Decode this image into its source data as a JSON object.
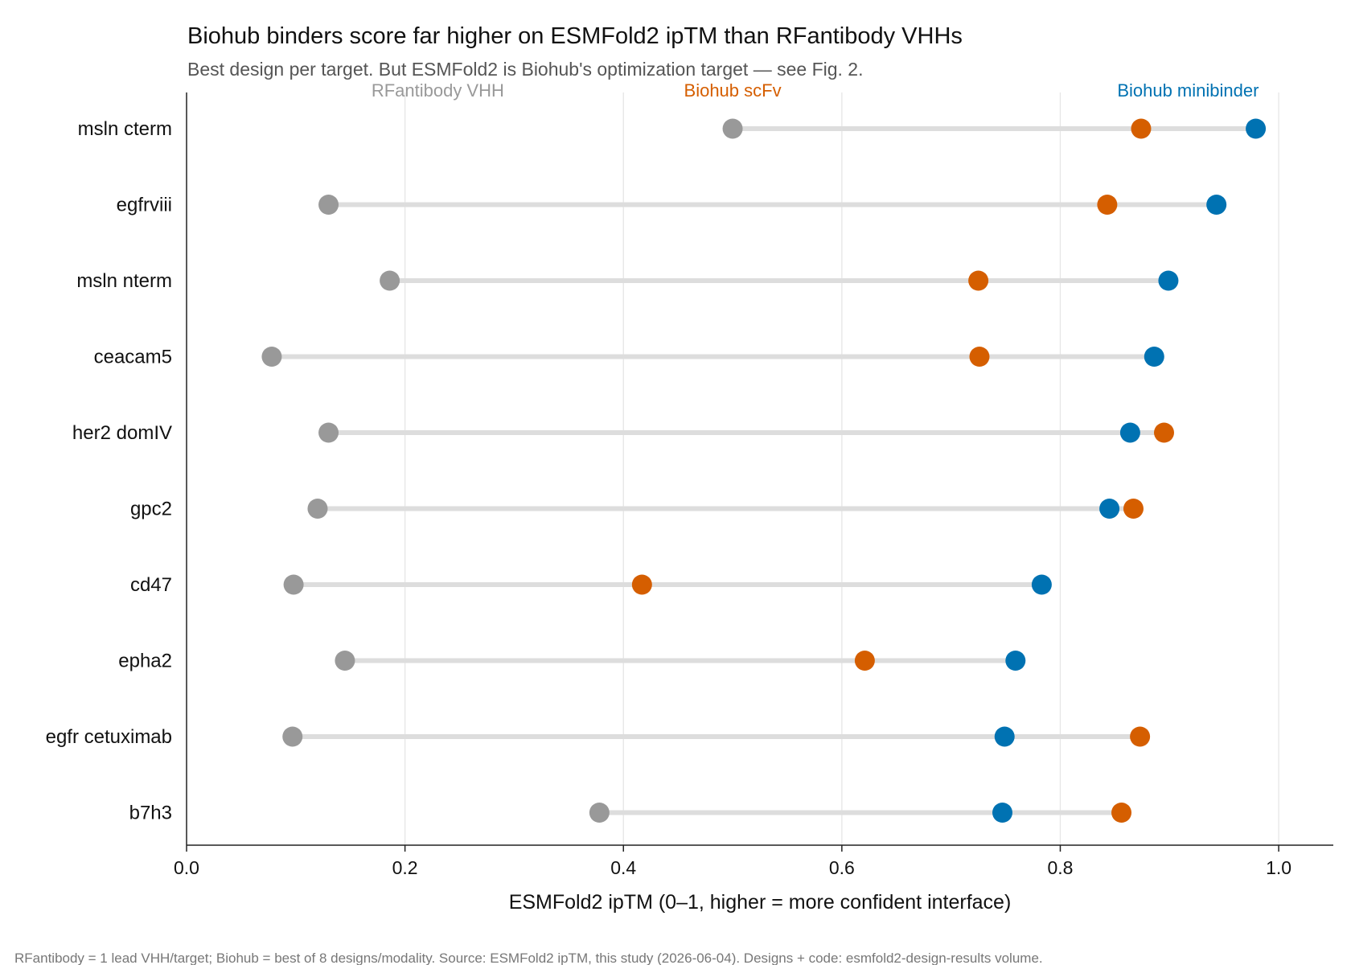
{
  "chart_data": {
    "type": "dumbbell",
    "title": "Biohub binders score far higher on ESMFold2 ipTM than RFantibody VHHs",
    "subtitle": "Best design per target. But ESMFold2 is Biohub's optimization target — see Fig. 2.",
    "xlabel": "ESMFold2 ipTM  (0–1, higher = more confident interface)",
    "ylabel": "",
    "xlim": [
      0.0,
      1.05
    ],
    "xticks": [
      0.0,
      0.2,
      0.4,
      0.6,
      0.8,
      1.0
    ],
    "xtick_labels": [
      "0.0",
      "0.2",
      "0.4",
      "0.6",
      "0.8",
      "1.0"
    ],
    "grid": "vertical",
    "categories": [
      "msln cterm",
      "egfrviii",
      "msln nterm",
      "ceacam5",
      "her2 domIV",
      "gpc2",
      "cd47",
      "epha2",
      "egfr cetuximab",
      "b7h3"
    ],
    "series": [
      {
        "name": "RFantibody VHH",
        "color": "#999999",
        "values": [
          0.5,
          0.13,
          0.186,
          0.078,
          0.13,
          0.12,
          0.098,
          0.145,
          0.097,
          0.378
        ]
      },
      {
        "name": "Biohub scFv",
        "color": "#D55E00",
        "values": [
          0.874,
          0.843,
          0.725,
          0.726,
          0.895,
          0.867,
          0.417,
          0.621,
          0.873,
          0.856
        ]
      },
      {
        "name": "Biohub minibinder",
        "color": "#0072B2",
        "values": [
          0.979,
          0.943,
          0.899,
          0.886,
          0.864,
          0.845,
          0.783,
          0.759,
          0.749,
          0.747
        ]
      }
    ],
    "footnote": "RFantibody = 1 lead VHH/target; Biohub = best of 8 designs/modality.  Source: ESMFold2 ipTM, this study (2026-06-04). Designs + code: esmfold2-design-results volume."
  }
}
